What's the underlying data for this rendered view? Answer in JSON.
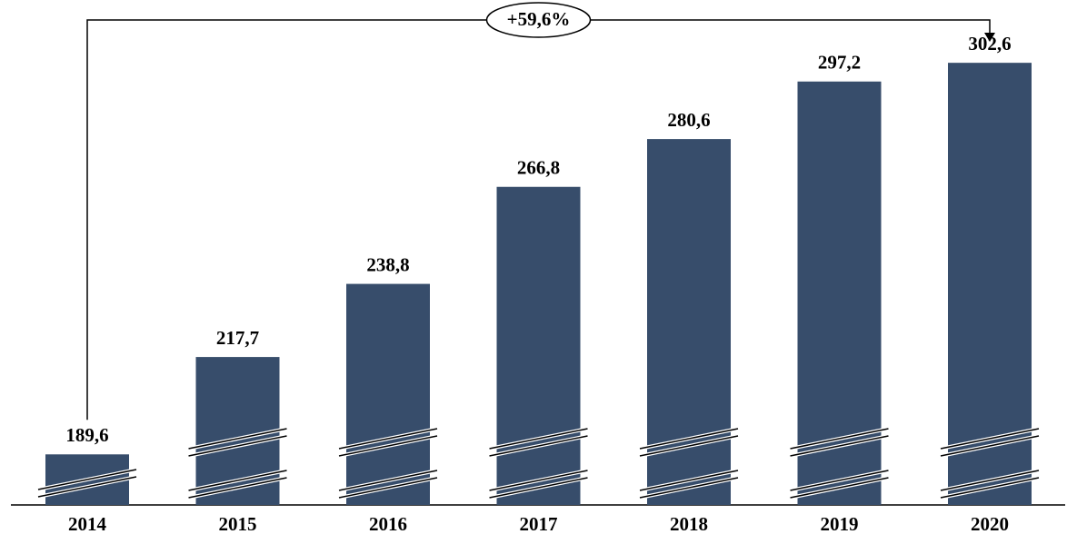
{
  "chart_data": {
    "type": "bar",
    "categories": [
      "2014",
      "2015",
      "2016",
      "2017",
      "2018",
      "2019",
      "2020"
    ],
    "values": [
      189.6,
      217.7,
      238.8,
      266.8,
      280.6,
      297.2,
      302.6
    ],
    "value_labels": [
      "189,6",
      "217,7",
      "238,8",
      "266,8",
      "280,6",
      "297,2",
      "302,6"
    ],
    "color": "#374d6b",
    "ylim": [
      175,
      305
    ],
    "annotation": "+59,6%"
  }
}
